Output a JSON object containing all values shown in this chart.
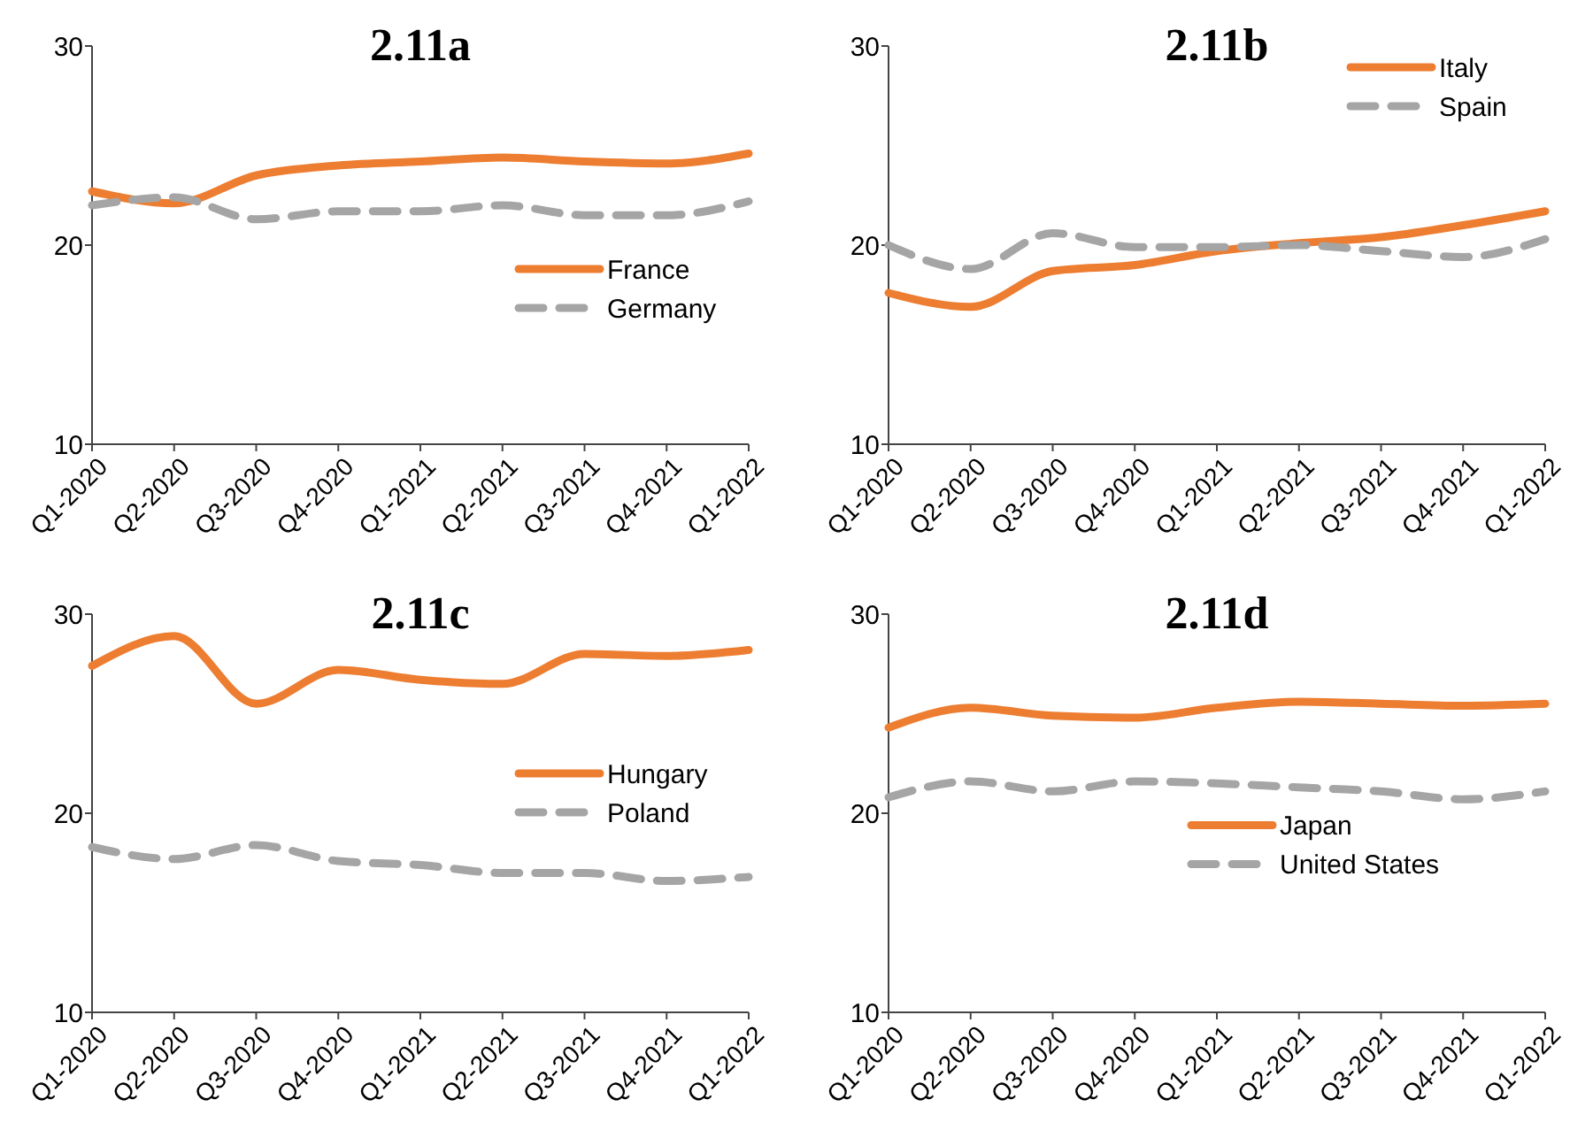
{
  "chart_data": [
    {
      "type": "line",
      "title": "2.11a",
      "categories": [
        "Q1-2020",
        "Q2-2020",
        "Q3-2020",
        "Q4-2020",
        "Q1-2021",
        "Q2-2021",
        "Q3-2021",
        "Q4-2021",
        "Q1-2022"
      ],
      "ylim": [
        10,
        30
      ],
      "yticks": [
        10,
        20,
        30
      ],
      "grid": false,
      "legend": "right",
      "series": [
        {
          "name": "France",
          "color": "#ed7d31",
          "line_style": "solid",
          "values": [
            22.7,
            22.1,
            23.5,
            24.0,
            24.2,
            24.4,
            24.2,
            24.1,
            24.6
          ]
        },
        {
          "name": "Germany",
          "color": "#a5a5a5",
          "line_style": "dashed",
          "values": [
            22.0,
            22.4,
            21.3,
            21.7,
            21.7,
            22.0,
            21.5,
            21.5,
            22.2
          ]
        }
      ]
    },
    {
      "type": "line",
      "title": "2.11b",
      "categories": [
        "Q1-2020",
        "Q2-2020",
        "Q3-2020",
        "Q4-2020",
        "Q1-2021",
        "Q2-2021",
        "Q3-2021",
        "Q4-2021",
        "Q1-2022"
      ],
      "ylim": [
        10,
        30
      ],
      "yticks": [
        10,
        20,
        30
      ],
      "grid": false,
      "legend": "top right",
      "series": [
        {
          "name": "Italy",
          "color": "#ed7d31",
          "line_style": "solid",
          "values": [
            17.6,
            16.9,
            18.7,
            19.0,
            19.7,
            20.1,
            20.4,
            21.0,
            21.7
          ]
        },
        {
          "name": "Spain",
          "color": "#a5a5a5",
          "line_style": "dashed",
          "values": [
            20.0,
            18.8,
            20.6,
            19.9,
            19.9,
            20.0,
            19.7,
            19.4,
            20.3
          ]
        }
      ]
    },
    {
      "type": "line",
      "title": "2.11c",
      "categories": [
        "Q1-2020",
        "Q2-2020",
        "Q3-2020",
        "Q4-2020",
        "Q1-2021",
        "Q2-2021",
        "Q3-2021",
        "Q4-2021",
        "Q1-2022"
      ],
      "ylim": [
        10,
        30
      ],
      "yticks": [
        10,
        20,
        30
      ],
      "grid": false,
      "legend": "center right",
      "series": [
        {
          "name": "Hungary",
          "color": "#ed7d31",
          "line_style": "solid",
          "values": [
            27.4,
            28.9,
            25.5,
            27.2,
            26.7,
            26.5,
            28.0,
            27.9,
            28.2
          ]
        },
        {
          "name": "Poland",
          "color": "#a5a5a5",
          "line_style": "dashed",
          "values": [
            18.3,
            17.7,
            18.4,
            17.6,
            17.4,
            17.0,
            17.0,
            16.6,
            16.8
          ]
        }
      ]
    },
    {
      "type": "line",
      "title": "2.11d",
      "categories": [
        "Q1-2020",
        "Q2-2020",
        "Q3-2020",
        "Q4-2020",
        "Q1-2021",
        "Q2-2021",
        "Q3-2021",
        "Q4-2021",
        "Q1-2022"
      ],
      "ylim": [
        10,
        30
      ],
      "yticks": [
        10,
        20,
        30
      ],
      "grid": false,
      "legend": "bottom right",
      "series": [
        {
          "name": "Japan",
          "color": "#ed7d31",
          "line_style": "solid",
          "values": [
            24.3,
            25.3,
            24.9,
            24.8,
            25.3,
            25.6,
            25.5,
            25.4,
            25.5
          ]
        },
        {
          "name": "United States",
          "color": "#a5a5a5",
          "line_style": "dashed",
          "values": [
            20.8,
            21.6,
            21.1,
            21.6,
            21.5,
            21.3,
            21.1,
            20.7,
            21.1
          ]
        }
      ]
    }
  ]
}
